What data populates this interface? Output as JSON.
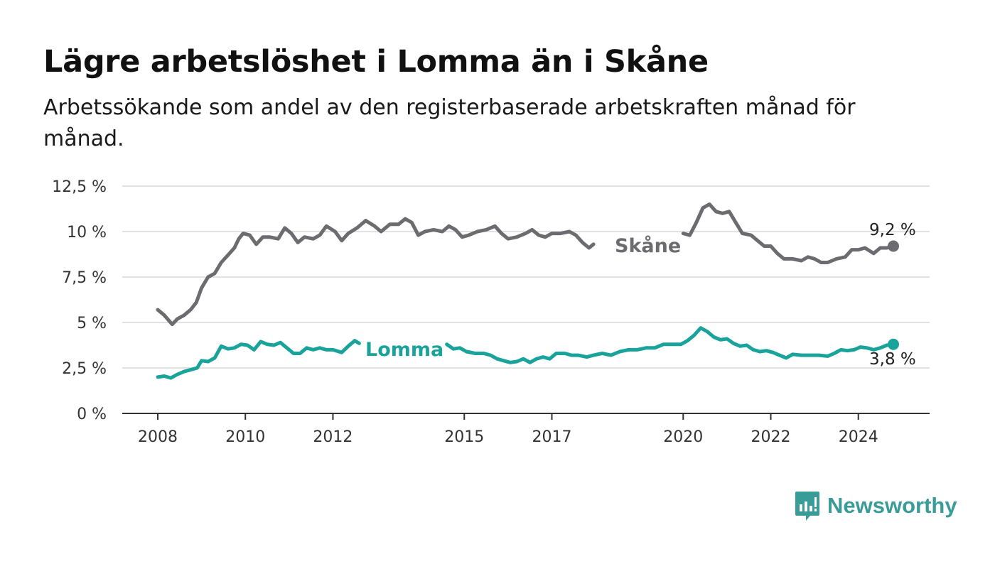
{
  "header": {
    "title": "Lägre arbetslöshet i Lomma än i Skåne",
    "subtitle": "Arbetssökande som andel av den registerbaserade arbetskraften månad för månad."
  },
  "brand": {
    "name": "Newsworthy",
    "icon": "newsworthy-logo-icon",
    "color": "#3a9c98"
  },
  "chart_data": {
    "type": "line",
    "ylim": [
      0,
      12.5
    ],
    "yticks": [
      0,
      2.5,
      5,
      7.5,
      10,
      12.5
    ],
    "ytick_labels": [
      "0 %",
      "2,5 %",
      "5 %",
      "7,5 %",
      "10 %",
      "12,5 %"
    ],
    "xlim": [
      2007.833,
      2025.083
    ],
    "xticks": [
      2008,
      2010,
      2012,
      2015,
      2017,
      2020,
      2022,
      2024
    ],
    "xtick_labels": [
      "2008",
      "2010",
      "2012",
      "2015",
      "2017",
      "2020",
      "2022",
      "2024"
    ],
    "grid": true,
    "series": [
      {
        "name": "Skåne",
        "color": "#6b6b70",
        "end_label": "9,2 %",
        "segments": [
          [
            [
              2008.0,
              5.7
            ],
            [
              2008.15,
              5.4
            ],
            [
              2008.33,
              4.9
            ],
            [
              2008.45,
              5.2
            ],
            [
              2008.6,
              5.4
            ],
            [
              2008.75,
              5.7
            ],
            [
              2008.88,
              6.1
            ],
            [
              2009.0,
              6.9
            ],
            [
              2009.15,
              7.5
            ],
            [
              2009.3,
              7.7
            ],
            [
              2009.45,
              8.3
            ],
            [
              2009.6,
              8.7
            ],
            [
              2009.75,
              9.1
            ],
            [
              2009.85,
              9.6
            ],
            [
              2009.95,
              9.9
            ],
            [
              2010.1,
              9.8
            ],
            [
              2010.25,
              9.3
            ],
            [
              2010.4,
              9.7
            ],
            [
              2010.55,
              9.7
            ],
            [
              2010.75,
              9.6
            ],
            [
              2010.9,
              10.2
            ],
            [
              2011.05,
              9.9
            ],
            [
              2011.2,
              9.4
            ],
            [
              2011.35,
              9.7
            ],
            [
              2011.55,
              9.6
            ],
            [
              2011.7,
              9.8
            ],
            [
              2011.85,
              10.3
            ],
            [
              2012.05,
              10.0
            ],
            [
              2012.2,
              9.5
            ],
            [
              2012.35,
              9.9
            ],
            [
              2012.55,
              10.2
            ],
            [
              2012.75,
              10.6
            ],
            [
              2012.95,
              10.3
            ],
            [
              2013.1,
              10.0
            ],
            [
              2013.3,
              10.4
            ],
            [
              2013.5,
              10.4
            ],
            [
              2013.65,
              10.7
            ],
            [
              2013.8,
              10.5
            ],
            [
              2013.95,
              9.8
            ],
            [
              2014.1,
              10.0
            ],
            [
              2014.3,
              10.1
            ],
            [
              2014.5,
              10.0
            ],
            [
              2014.65,
              10.3
            ],
            [
              2014.8,
              10.1
            ],
            [
              2014.95,
              9.7
            ],
            [
              2015.1,
              9.8
            ],
            [
              2015.3,
              10.0
            ],
            [
              2015.5,
              10.1
            ],
            [
              2015.7,
              10.3
            ],
            [
              2015.85,
              9.9
            ],
            [
              2016.0,
              9.6
            ],
            [
              2016.2,
              9.7
            ],
            [
              2016.4,
              9.9
            ],
            [
              2016.55,
              10.1
            ],
            [
              2016.7,
              9.8
            ],
            [
              2016.85,
              9.7
            ],
            [
              2017.0,
              9.9
            ],
            [
              2017.2,
              9.9
            ],
            [
              2017.4,
              10.0
            ],
            [
              2017.55,
              9.8
            ],
            [
              2017.7,
              9.4
            ],
            [
              2017.85,
              9.1
            ],
            [
              2017.95,
              9.3
            ]
          ],
          [
            [
              2020.0,
              9.9
            ],
            [
              2020.15,
              9.8
            ],
            [
              2020.3,
              10.5
            ],
            [
              2020.45,
              11.3
            ],
            [
              2020.6,
              11.5
            ],
            [
              2020.75,
              11.1
            ],
            [
              2020.9,
              11.0
            ],
            [
              2021.05,
              11.1
            ],
            [
              2021.2,
              10.5
            ],
            [
              2021.35,
              9.9
            ],
            [
              2021.55,
              9.8
            ],
            [
              2021.7,
              9.5
            ],
            [
              2021.85,
              9.2
            ],
            [
              2022.0,
              9.2
            ],
            [
              2022.15,
              8.8
            ],
            [
              2022.3,
              8.5
            ],
            [
              2022.5,
              8.5
            ],
            [
              2022.7,
              8.4
            ],
            [
              2022.85,
              8.6
            ],
            [
              2023.0,
              8.5
            ],
            [
              2023.15,
              8.3
            ],
            [
              2023.3,
              8.3
            ],
            [
              2023.5,
              8.5
            ],
            [
              2023.7,
              8.6
            ],
            [
              2023.85,
              9.0
            ],
            [
              2024.0,
              9.0
            ],
            [
              2024.15,
              9.1
            ],
            [
              2024.35,
              8.8
            ],
            [
              2024.5,
              9.1
            ],
            [
              2024.65,
              9.1
            ],
            [
              2024.8,
              9.2
            ]
          ]
        ]
      },
      {
        "name": "Lomma",
        "color": "#1aa39a",
        "end_label": "3,8 %",
        "segments": [
          [
            [
              2008.0,
              2.0
            ],
            [
              2008.15,
              2.05
            ],
            [
              2008.3,
              1.95
            ],
            [
              2008.45,
              2.15
            ],
            [
              2008.6,
              2.3
            ],
            [
              2008.75,
              2.4
            ],
            [
              2008.9,
              2.5
            ],
            [
              2009.0,
              2.9
            ],
            [
              2009.15,
              2.85
            ],
            [
              2009.3,
              3.05
            ],
            [
              2009.45,
              3.7
            ],
            [
              2009.6,
              3.55
            ],
            [
              2009.75,
              3.6
            ],
            [
              2009.9,
              3.8
            ],
            [
              2010.05,
              3.75
            ],
            [
              2010.2,
              3.5
            ],
            [
              2010.35,
              3.95
            ],
            [
              2010.5,
              3.8
            ],
            [
              2010.65,
              3.75
            ],
            [
              2010.8,
              3.9
            ],
            [
              2010.95,
              3.6
            ],
            [
              2011.1,
              3.3
            ],
            [
              2011.25,
              3.3
            ],
            [
              2011.4,
              3.6
            ],
            [
              2011.55,
              3.5
            ],
            [
              2011.7,
              3.6
            ],
            [
              2011.85,
              3.5
            ],
            [
              2012.0,
              3.5
            ],
            [
              2012.2,
              3.35
            ],
            [
              2012.35,
              3.7
            ],
            [
              2012.5,
              4.0
            ],
            [
              2012.6,
              3.85
            ]
          ],
          [
            [
              2014.6,
              3.8
            ],
            [
              2014.75,
              3.55
            ],
            [
              2014.9,
              3.6
            ],
            [
              2015.05,
              3.4
            ],
            [
              2015.25,
              3.3
            ],
            [
              2015.45,
              3.3
            ],
            [
              2015.6,
              3.2
            ],
            [
              2015.75,
              3.0
            ],
            [
              2015.9,
              2.9
            ],
            [
              2016.05,
              2.8
            ],
            [
              2016.2,
              2.85
            ],
            [
              2016.35,
              3.0
            ],
            [
              2016.5,
              2.8
            ],
            [
              2016.65,
              3.0
            ],
            [
              2016.8,
              3.1
            ],
            [
              2016.95,
              3.0
            ],
            [
              2017.1,
              3.3
            ],
            [
              2017.3,
              3.3
            ],
            [
              2017.45,
              3.2
            ],
            [
              2017.6,
              3.2
            ],
            [
              2017.8,
              3.1
            ],
            [
              2017.95,
              3.2
            ],
            [
              2018.15,
              3.3
            ],
            [
              2018.35,
              3.2
            ],
            [
              2018.55,
              3.4
            ],
            [
              2018.75,
              3.5
            ],
            [
              2018.95,
              3.5
            ],
            [
              2019.15,
              3.6
            ],
            [
              2019.35,
              3.6
            ],
            [
              2019.55,
              3.8
            ],
            [
              2019.75,
              3.8
            ],
            [
              2019.95,
              3.8
            ],
            [
              2020.1,
              4.0
            ],
            [
              2020.25,
              4.3
            ],
            [
              2020.4,
              4.7
            ],
            [
              2020.55,
              4.5
            ],
            [
              2020.7,
              4.2
            ],
            [
              2020.85,
              4.05
            ],
            [
              2021.0,
              4.1
            ],
            [
              2021.15,
              3.85
            ],
            [
              2021.3,
              3.7
            ],
            [
              2021.45,
              3.75
            ],
            [
              2021.6,
              3.5
            ],
            [
              2021.75,
              3.4
            ],
            [
              2021.9,
              3.45
            ],
            [
              2022.05,
              3.35
            ],
            [
              2022.2,
              3.2
            ],
            [
              2022.35,
              3.05
            ],
            [
              2022.5,
              3.25
            ],
            [
              2022.7,
              3.2
            ],
            [
              2022.9,
              3.2
            ],
            [
              2023.1,
              3.2
            ],
            [
              2023.3,
              3.15
            ],
            [
              2023.45,
              3.3
            ],
            [
              2023.6,
              3.5
            ],
            [
              2023.75,
              3.45
            ],
            [
              2023.9,
              3.5
            ],
            [
              2024.05,
              3.65
            ],
            [
              2024.2,
              3.6
            ],
            [
              2024.35,
              3.5
            ],
            [
              2024.5,
              3.6
            ],
            [
              2024.65,
              3.75
            ],
            [
              2024.8,
              3.8
            ]
          ]
        ]
      }
    ]
  }
}
